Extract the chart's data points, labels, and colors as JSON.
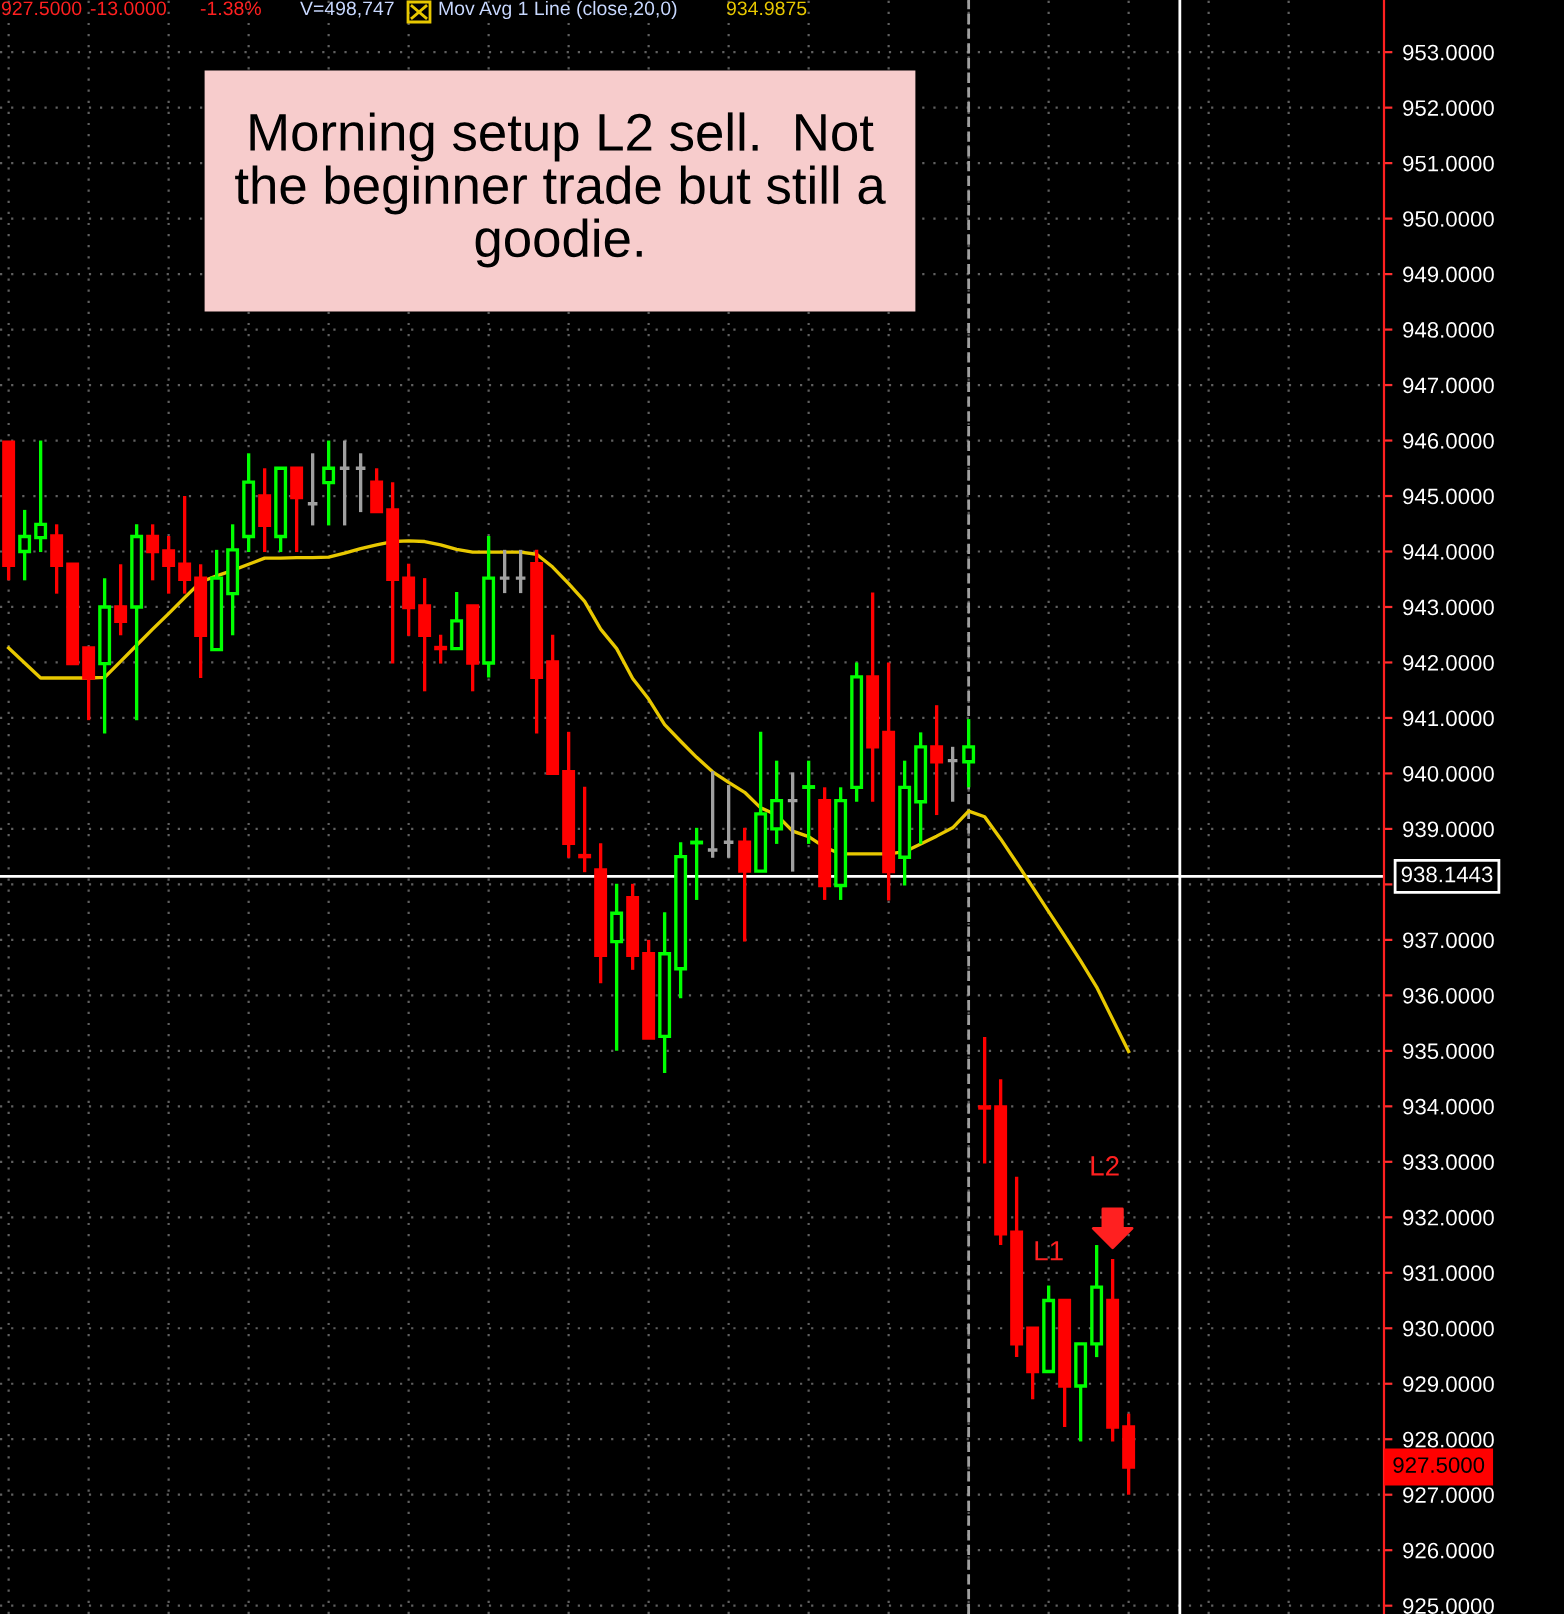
{
  "chart_data": {
    "type": "candlestick",
    "categories": [
      null,
      null,
      null,
      null,
      null,
      null,
      null,
      null,
      null,
      null,
      null,
      null,
      null,
      null,
      null,
      null,
      null,
      null,
      null,
      null,
      null,
      null,
      null,
      null,
      null,
      null,
      null,
      null,
      null,
      null,
      null,
      null,
      null,
      null,
      null,
      null,
      null,
      null,
      null,
      null,
      null,
      null,
      null,
      null,
      null,
      null,
      null,
      null,
      null,
      null,
      null,
      null,
      null,
      null,
      null,
      null,
      null,
      null,
      null,
      null,
      null,
      null,
      null,
      null,
      null,
      null,
      null,
      null,
      null,
      null,
      null
    ],
    "ohlc": [
      [
        945.97,
        945.97,
        943.48,
        943.75
      ],
      [
        944.0,
        944.75,
        943.48,
        944.27
      ],
      [
        944.25,
        946.0,
        943.99,
        944.49
      ],
      [
        944.28,
        944.49,
        943.24,
        943.75
      ],
      [
        943.77,
        943.77,
        941.98,
        941.98
      ],
      [
        942.26,
        942.26,
        940.96,
        941.72
      ],
      [
        941.98,
        943.52,
        940.72,
        943.0
      ],
      [
        943.0,
        943.77,
        942.49,
        942.74
      ],
      [
        943.0,
        944.49,
        940.96,
        944.27
      ],
      [
        944.27,
        944.49,
        943.48,
        944.0
      ],
      [
        944.01,
        944.28,
        943.24,
        943.75
      ],
      [
        943.77,
        945.0,
        943.24,
        943.5
      ],
      [
        943.52,
        943.77,
        941.72,
        942.49
      ],
      [
        942.23,
        944.03,
        942.23,
        943.52
      ],
      [
        943.24,
        944.49,
        942.49,
        944.03
      ],
      [
        944.27,
        945.77,
        943.99,
        945.25
      ],
      [
        945.0,
        945.5,
        943.99,
        944.47
      ],
      [
        944.27,
        945.5,
        943.99,
        945.5
      ],
      [
        945.5,
        945.5,
        943.99,
        944.97
      ],
      [
        944.86,
        945.77,
        944.47,
        944.86
      ],
      [
        945.24,
        946.0,
        944.47,
        945.5
      ],
      [
        945.5,
        946.0,
        944.47,
        945.5
      ],
      [
        945.5,
        945.77,
        944.71,
        945.5
      ],
      [
        945.25,
        945.5,
        944.72,
        944.72
      ],
      [
        944.75,
        945.25,
        941.98,
        943.5
      ],
      [
        943.52,
        943.78,
        942.48,
        942.99
      ],
      [
        943.02,
        943.52,
        941.48,
        942.49
      ],
      [
        942.27,
        942.5,
        941.98,
        942.25
      ],
      [
        942.25,
        943.27,
        942.25,
        942.75
      ],
      [
        943.02,
        943.02,
        941.48,
        941.99
      ],
      [
        941.99,
        944.28,
        941.73,
        943.52
      ],
      [
        943.52,
        944.03,
        943.25,
        943.52
      ],
      [
        943.52,
        944.03,
        943.25,
        943.52
      ],
      [
        943.78,
        944.03,
        940.72,
        941.73
      ],
      [
        942.01,
        942.5,
        940.0,
        940.0
      ],
      [
        940.03,
        940.75,
        938.48,
        938.74
      ],
      [
        938.52,
        939.76,
        938.22,
        938.5
      ],
      [
        938.26,
        938.74,
        936.22,
        936.72
      ],
      [
        936.97,
        938.01,
        935.0,
        937.48
      ],
      [
        937.76,
        938.01,
        936.46,
        936.72
      ],
      [
        936.75,
        937.0,
        935.23,
        935.23
      ],
      [
        935.26,
        937.5,
        934.6,
        936.75
      ],
      [
        936.48,
        938.76,
        935.95,
        938.5
      ],
      [
        938.75,
        939.02,
        937.72,
        938.76
      ],
      [
        938.62,
        940.04,
        938.48,
        938.62
      ],
      [
        938.76,
        939.79,
        938.48,
        938.76
      ],
      [
        938.76,
        939.02,
        936.97,
        938.24
      ],
      [
        938.24,
        940.75,
        938.24,
        939.27
      ],
      [
        939.0,
        940.23,
        938.73,
        939.51
      ],
      [
        939.51,
        940.02,
        938.23,
        939.51
      ],
      [
        939.75,
        940.23,
        938.73,
        939.76
      ],
      [
        939.51,
        939.75,
        937.72,
        937.98
      ],
      [
        937.98,
        939.75,
        937.72,
        939.51
      ],
      [
        939.75,
        942.0,
        939.49,
        941.74
      ],
      [
        941.74,
        943.26,
        939.49,
        940.48
      ],
      [
        940.74,
        942.0,
        937.71,
        938.23
      ],
      [
        938.49,
        940.23,
        937.98,
        939.75
      ],
      [
        939.49,
        940.74,
        938.73,
        940.48
      ],
      [
        940.48,
        941.23,
        939.25,
        940.21
      ],
      [
        940.23,
        940.48,
        939.49,
        940.23
      ],
      [
        940.21,
        940.98,
        939.75,
        940.48
      ],
      [
        933.99,
        935.25,
        932.97,
        933.97
      ],
      [
        933.99,
        934.49,
        931.5,
        931.7
      ],
      [
        931.73,
        932.73,
        929.48,
        929.72
      ],
      [
        930.0,
        930.0,
        928.72,
        929.22
      ],
      [
        929.22,
        930.77,
        929.22,
        930.5
      ],
      [
        930.5,
        930.5,
        928.22,
        928.96
      ],
      [
        928.96,
        929.72,
        927.96,
        929.72
      ],
      [
        929.72,
        931.5,
        929.48,
        930.74
      ],
      [
        930.5,
        931.25,
        927.96,
        928.22
      ],
      [
        928.22,
        928.46,
        927.0,
        927.5
      ]
    ],
    "colors": [
      "#ff0000",
      "#00ff00",
      "#00ff00",
      "#ff0000",
      "#ff0000",
      "#ff0000",
      "#00ff00",
      "#ff0000",
      "#00ff00",
      "#ff0000",
      "#ff0000",
      "#ff0000",
      "#ff0000",
      "#00ff00",
      "#00ff00",
      "#00ff00",
      "#ff0000",
      "#00ff00",
      "#ff0000",
      "#a0a0a0",
      "#00ff00",
      "#a0a0a0",
      "#a0a0a0",
      "#ff0000",
      "#ff0000",
      "#ff0000",
      "#ff0000",
      "#ff0000",
      "#00ff00",
      "#ff0000",
      "#00ff00",
      "#a0a0a0",
      "#a0a0a0",
      "#ff0000",
      "#ff0000",
      "#ff0000",
      "#ff0000",
      "#ff0000",
      "#00ff00",
      "#ff0000",
      "#ff0000",
      "#00ff00",
      "#00ff00",
      "#00ff00",
      "#a0a0a0",
      "#a0a0a0",
      "#ff0000",
      "#00ff00",
      "#00ff00",
      "#a0a0a0",
      "#00ff00",
      "#ff0000",
      "#00ff00",
      "#00ff00",
      "#ff0000",
      "#ff0000",
      "#00ff00",
      "#00ff00",
      "#ff0000",
      "#a0a0a0",
      "#00ff00",
      "#ff0000",
      "#ff0000",
      "#ff0000",
      "#ff0000",
      "#00ff00",
      "#ff0000",
      "#00ff00",
      "#00ff00",
      "#ff0000",
      "#ff0000"
    ],
    "series": [
      {
        "name": "Mov Avg 1 Line (close,20,0)",
        "type": "line",
        "color": "#e8c800",
        "values": [
          942.26,
          941.99,
          941.72,
          941.72,
          941.72,
          941.72,
          941.73,
          942.02,
          942.31,
          942.6,
          942.88,
          943.17,
          943.45,
          943.56,
          943.66,
          943.77,
          943.88,
          943.88,
          943.89,
          943.89,
          943.9,
          943.97,
          944.05,
          944.12,
          944.18,
          944.19,
          944.18,
          944.12,
          944.04,
          943.99,
          943.99,
          943.99,
          943.99,
          943.95,
          943.72,
          943.42,
          943.1,
          942.6,
          942.25,
          941.71,
          941.34,
          940.88,
          940.58,
          940.29,
          940.03,
          939.84,
          939.66,
          939.38,
          939.25,
          938.96,
          938.86,
          938.67,
          938.55,
          938.55,
          938.55,
          938.55,
          938.59,
          938.73,
          938.87,
          939.02,
          939.32,
          939.22,
          938.82,
          938.39,
          937.95,
          937.51,
          937.07,
          936.62,
          936.15,
          935.57,
          934.99
        ]
      }
    ],
    "ylim": [
      924.85,
      953.94
    ],
    "yticks": [
      {
        "value": 925,
        "label": "925.0000"
      },
      {
        "value": 926,
        "label": "926.0000"
      },
      {
        "value": 927,
        "label": "927.0000"
      },
      {
        "value": 928,
        "label": "928.0000"
      },
      {
        "value": 929,
        "label": "929.0000"
      },
      {
        "value": 930,
        "label": "930.0000"
      },
      {
        "value": 931,
        "label": "931.0000"
      },
      {
        "value": 932,
        "label": "932.0000"
      },
      {
        "value": 933,
        "label": "933.0000"
      },
      {
        "value": 934,
        "label": "934.0000"
      },
      {
        "value": 935,
        "label": "935.0000"
      },
      {
        "value": 936,
        "label": "936.0000"
      },
      {
        "value": 937,
        "label": "937.0000"
      },
      {
        "value": 938,
        "label": null
      },
      {
        "value": 939,
        "label": "939.0000"
      },
      {
        "value": 940,
        "label": "940.0000"
      },
      {
        "value": 941,
        "label": "941.0000"
      },
      {
        "value": 942,
        "label": "942.0000"
      },
      {
        "value": 943,
        "label": "943.0000"
      },
      {
        "value": 944,
        "label": "944.0000"
      },
      {
        "value": 945,
        "label": "945.0000"
      },
      {
        "value": 946,
        "label": "946.0000"
      },
      {
        "value": 947,
        "label": "947.0000"
      },
      {
        "value": 948,
        "label": "948.0000"
      },
      {
        "value": 949,
        "label": "949.0000"
      },
      {
        "value": 950,
        "label": "950.0000"
      },
      {
        "value": 951,
        "label": "951.0000"
      },
      {
        "value": 952,
        "label": "952.0000"
      },
      {
        "value": 953,
        "label": "953.0000"
      }
    ],
    "ref_lines": [
      {
        "axis": "y",
        "value": 938.1443,
        "label": "938.1443",
        "color": "#ffffff",
        "line_style": "solid"
      }
    ],
    "annotations": [
      "927.5000",
      "-13.0000",
      "-1.38%",
      "V=498,747",
      "934.9875",
      "Morning setup L2 sell.  Not\nthe beginner trade but still a\ngoodie.",
      "L1",
      "L2",
      "927.5000"
    ],
    "grid": true,
    "legend": "top left",
    "tick_labels": "y"
  }
}
